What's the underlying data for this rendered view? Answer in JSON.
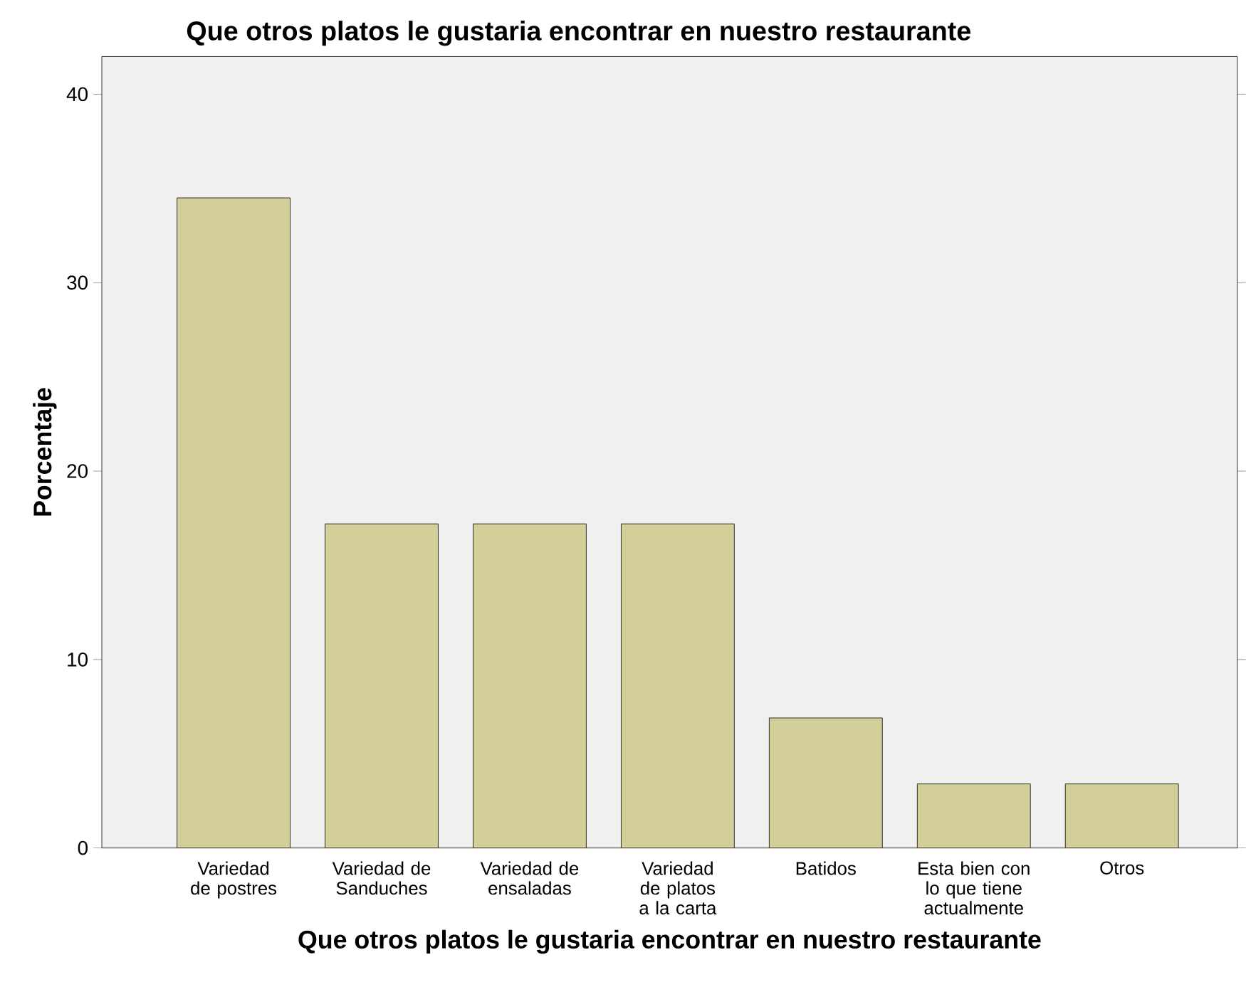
{
  "chart_data": {
    "type": "bar",
    "title": "Que otros platos le gustaria encontrar en nuestro restaurante",
    "xlabel": "Que otros platos le gustaria encontrar en nuestro restaurante",
    "ylabel": "Porcentaje",
    "categories": [
      "Variedad de postres",
      "Variedad de Sanduches",
      "Variedad de ensaladas",
      "Variedad de platos a la carta",
      "Batidos",
      "Esta bien con lo que tiene actualmente",
      "Otros"
    ],
    "values": [
      34.5,
      17.2,
      17.2,
      17.2,
      6.9,
      3.4,
      3.4
    ],
    "color": "#d3cf99",
    "ylim": [
      0,
      42
    ],
    "yticks": [
      0,
      10,
      20,
      30,
      40
    ]
  }
}
